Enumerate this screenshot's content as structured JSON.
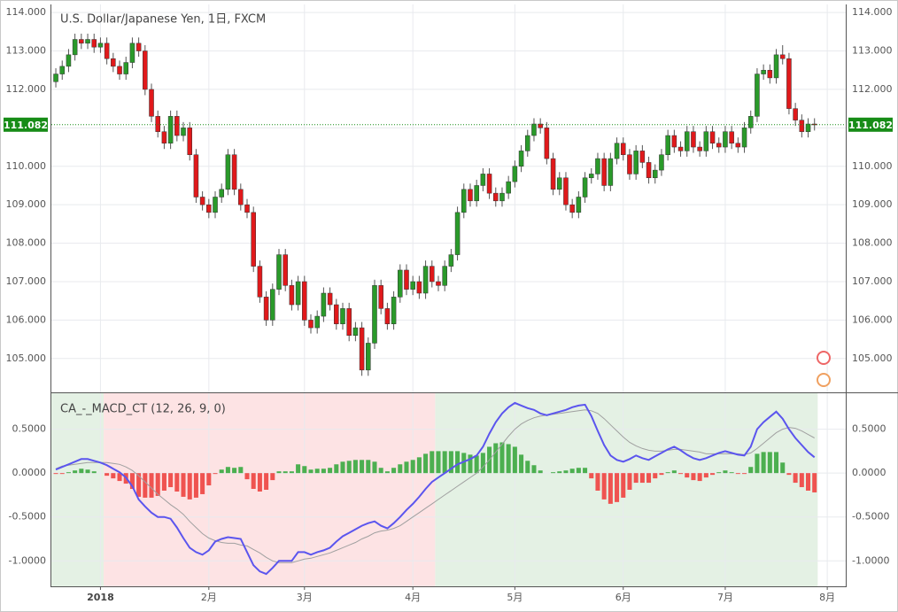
{
  "chart_data": [
    {
      "type": "candlestick",
      "title": "U.S. Dollar/Japanese Yen, 1日, FXCM",
      "up_color": "#2a9a2a",
      "down_color": "#e0191b",
      "wick_color": "#555555",
      "last_price_color": "#178c17",
      "xlim": [
        -0.7,
        123.9
      ],
      "ylim": [
        104.12,
        114.21
      ],
      "grid": true,
      "yticks": [
        {
          "value": 105,
          "label": "105.000"
        },
        {
          "value": 106,
          "label": "106.000"
        },
        {
          "value": 107,
          "label": "107.000"
        },
        {
          "value": 108,
          "label": "108.000"
        },
        {
          "value": 109,
          "label": "109.000"
        },
        {
          "value": 110,
          "label": "110.000"
        },
        {
          "value": 111,
          "label": "111.000"
        },
        {
          "value": 112,
          "label": "112.000"
        },
        {
          "value": 113,
          "label": "113.000"
        },
        {
          "value": 114,
          "label": "114.000"
        }
      ],
      "candles": [
        [
          112.2,
          112.55,
          112.05,
          112.4
        ],
        [
          112.4,
          112.75,
          112.25,
          112.6
        ],
        [
          112.6,
          113.05,
          112.45,
          112.9
        ],
        [
          112.9,
          113.45,
          112.75,
          113.3
        ],
        [
          113.3,
          113.45,
          113.05,
          113.2
        ],
        [
          113.2,
          113.45,
          113.05,
          113.3
        ],
        [
          113.3,
          113.45,
          112.95,
          113.1
        ],
        [
          113.1,
          113.35,
          112.95,
          113.2
        ],
        [
          113.2,
          113.35,
          112.65,
          112.8
        ],
        [
          112.8,
          112.95,
          112.45,
          112.6
        ],
        [
          112.6,
          112.75,
          112.25,
          112.4
        ],
        [
          112.4,
          112.85,
          112.25,
          112.7
        ],
        [
          112.7,
          113.35,
          112.55,
          113.2
        ],
        [
          113.2,
          113.35,
          112.85,
          113.0
        ],
        [
          113.0,
          113.15,
          111.85,
          112.0
        ],
        [
          112.0,
          112.15,
          111.15,
          111.3
        ],
        [
          111.3,
          111.45,
          110.75,
          110.9
        ],
        [
          110.9,
          111.05,
          110.45,
          110.6
        ],
        [
          110.6,
          111.45,
          110.45,
          111.3
        ],
        [
          111.3,
          111.45,
          110.65,
          110.8
        ],
        [
          110.8,
          111.15,
          110.65,
          111.0
        ],
        [
          111.0,
          111.15,
          110.15,
          110.3
        ],
        [
          110.3,
          110.45,
          109.05,
          109.2
        ],
        [
          109.2,
          109.35,
          108.85,
          109.0
        ],
        [
          109.0,
          109.15,
          108.65,
          108.8
        ],
        [
          108.8,
          109.35,
          108.65,
          109.2
        ],
        [
          109.2,
          109.55,
          109.05,
          109.4
        ],
        [
          109.4,
          110.45,
          109.25,
          110.3
        ],
        [
          110.3,
          110.45,
          109.25,
          109.4
        ],
        [
          109.4,
          109.55,
          108.85,
          109.0
        ],
        [
          109.0,
          109.15,
          108.65,
          108.8
        ],
        [
          108.8,
          108.95,
          107.25,
          107.4
        ],
        [
          107.4,
          107.55,
          106.45,
          106.6
        ],
        [
          106.6,
          106.75,
          105.85,
          106.0
        ],
        [
          106.0,
          106.95,
          105.85,
          106.8
        ],
        [
          106.8,
          107.85,
          106.65,
          107.7
        ],
        [
          107.7,
          107.85,
          106.75,
          106.9
        ],
        [
          106.9,
          107.05,
          106.25,
          106.4
        ],
        [
          106.4,
          107.15,
          106.25,
          107.0
        ],
        [
          107.0,
          107.15,
          105.85,
          106.0
        ],
        [
          106.0,
          106.15,
          105.65,
          105.8
        ],
        [
          105.8,
          106.25,
          105.65,
          106.1
        ],
        [
          106.1,
          106.85,
          105.95,
          106.7
        ],
        [
          106.7,
          106.85,
          106.25,
          106.4
        ],
        [
          106.4,
          106.55,
          105.75,
          105.9
        ],
        [
          105.9,
          106.45,
          105.75,
          106.3
        ],
        [
          106.3,
          106.45,
          105.45,
          105.6
        ],
        [
          105.6,
          105.95,
          105.45,
          105.8
        ],
        [
          105.8,
          105.95,
          104.55,
          104.7
        ],
        [
          104.7,
          105.55,
          104.55,
          105.4
        ],
        [
          105.4,
          107.05,
          105.25,
          106.9
        ],
        [
          106.9,
          107.05,
          106.15,
          106.3
        ],
        [
          106.3,
          106.45,
          105.75,
          105.9
        ],
        [
          105.9,
          106.75,
          105.75,
          106.6
        ],
        [
          106.6,
          107.45,
          106.45,
          107.3
        ],
        [
          107.3,
          107.45,
          106.65,
          106.8
        ],
        [
          106.8,
          107.15,
          106.65,
          107.0
        ],
        [
          107.0,
          107.15,
          106.55,
          106.7
        ],
        [
          106.7,
          107.55,
          106.55,
          107.4
        ],
        [
          107.4,
          107.55,
          106.85,
          107.0
        ],
        [
          107.0,
          107.15,
          106.75,
          106.9
        ],
        [
          106.9,
          107.55,
          106.75,
          107.4
        ],
        [
          107.4,
          107.85,
          107.25,
          107.7
        ],
        [
          107.7,
          108.95,
          107.55,
          108.8
        ],
        [
          108.8,
          109.55,
          108.65,
          109.4
        ],
        [
          109.4,
          109.55,
          108.95,
          109.1
        ],
        [
          109.1,
          109.65,
          108.95,
          109.5
        ],
        [
          109.5,
          109.95,
          109.35,
          109.8
        ],
        [
          109.8,
          109.95,
          109.15,
          109.3
        ],
        [
          109.3,
          109.45,
          108.95,
          109.1
        ],
        [
          109.1,
          109.45,
          108.95,
          109.3
        ],
        [
          109.3,
          109.75,
          109.15,
          109.6
        ],
        [
          109.6,
          110.15,
          109.45,
          110.0
        ],
        [
          110.0,
          110.55,
          109.85,
          110.4
        ],
        [
          110.4,
          110.95,
          110.25,
          110.8
        ],
        [
          110.8,
          111.25,
          110.65,
          111.1
        ],
        [
          111.1,
          111.25,
          110.85,
          111.0
        ],
        [
          111.0,
          111.15,
          110.05,
          110.2
        ],
        [
          110.2,
          110.35,
          109.25,
          109.4
        ],
        [
          109.4,
          109.85,
          109.25,
          109.7
        ],
        [
          109.7,
          109.85,
          108.85,
          109.0
        ],
        [
          109.0,
          109.15,
          108.65,
          108.8
        ],
        [
          108.8,
          109.35,
          108.65,
          109.2
        ],
        [
          109.2,
          109.85,
          109.05,
          109.7
        ],
        [
          109.7,
          109.95,
          109.55,
          109.8
        ],
        [
          109.8,
          110.35,
          109.65,
          110.2
        ],
        [
          110.2,
          110.35,
          109.35,
          109.5
        ],
        [
          109.5,
          110.35,
          109.35,
          110.2
        ],
        [
          110.2,
          110.75,
          110.05,
          110.6
        ],
        [
          110.6,
          110.75,
          110.15,
          110.3
        ],
        [
          110.3,
          110.45,
          109.65,
          109.8
        ],
        [
          109.8,
          110.55,
          109.65,
          110.4
        ],
        [
          110.4,
          110.55,
          109.95,
          110.1
        ],
        [
          110.1,
          110.25,
          109.55,
          109.7
        ],
        [
          109.7,
          110.05,
          109.55,
          109.9
        ],
        [
          109.9,
          110.45,
          109.75,
          110.3
        ],
        [
          110.3,
          110.95,
          110.15,
          110.8
        ],
        [
          110.8,
          110.95,
          110.35,
          110.5
        ],
        [
          110.5,
          110.65,
          110.25,
          110.4
        ],
        [
          110.4,
          111.05,
          110.25,
          110.9
        ],
        [
          110.9,
          111.05,
          110.35,
          110.5
        ],
        [
          110.5,
          110.65,
          110.25,
          110.4
        ],
        [
          110.4,
          111.05,
          110.25,
          110.9
        ],
        [
          110.9,
          111.05,
          110.45,
          110.6
        ],
        [
          110.6,
          110.75,
          110.35,
          110.5
        ],
        [
          110.5,
          111.05,
          110.35,
          110.9
        ],
        [
          110.9,
          111.05,
          110.45,
          110.6
        ],
        [
          110.6,
          110.75,
          110.35,
          110.5
        ],
        [
          110.5,
          111.15,
          110.35,
          111.0
        ],
        [
          111.0,
          111.45,
          110.85,
          111.3
        ],
        [
          111.3,
          112.55,
          111.15,
          112.4
        ],
        [
          112.4,
          112.65,
          112.25,
          112.5
        ],
        [
          112.5,
          112.65,
          112.15,
          112.3
        ],
        [
          112.3,
          113.05,
          112.15,
          112.9
        ],
        [
          112.9,
          113.15,
          112.65,
          112.8
        ],
        [
          112.8,
          112.95,
          111.35,
          111.5
        ],
        [
          111.5,
          111.65,
          111.05,
          111.2
        ],
        [
          111.2,
          111.35,
          110.75,
          110.9
        ],
        [
          110.9,
          111.25,
          110.75,
          111.1
        ],
        [
          111.1,
          111.25,
          110.93,
          111.082
        ]
      ]
    },
    {
      "type": "macd",
      "title": "CA_-_MACD_CT (12, 26, 9, 0)",
      "xlim": [
        -0.7,
        123.9
      ],
      "ylim": [
        -1.29,
        0.92
      ],
      "grid": true,
      "yticks": [
        {
          "value": -1,
          "label": "-1.0000"
        },
        {
          "value": -0.5,
          "label": "-0.5000"
        },
        {
          "value": 0,
          "label": "0.0000"
        },
        {
          "value": 0.5,
          "label": "0.5000"
        }
      ],
      "xticks": [
        {
          "value": 7,
          "label": "2018"
        },
        {
          "value": 24,
          "label": "2月"
        },
        {
          "value": 39,
          "label": "3月"
        },
        {
          "value": 56,
          "label": "4月"
        },
        {
          "value": 72,
          "label": "5月"
        },
        {
          "value": 89,
          "label": "6月"
        },
        {
          "value": 105,
          "label": "7月"
        },
        {
          "value": 121,
          "label": "8月"
        }
      ],
      "regions": [
        {
          "from": 0,
          "to": 7,
          "color": "#e4f1e4"
        },
        {
          "from": 8,
          "to": 59,
          "color": "#fde3e4"
        },
        {
          "from": 60,
          "to": 119,
          "color": "#e4f1e4"
        }
      ],
      "macd": {
        "color": "#5b55ee",
        "values": [
          0.04,
          0.07,
          0.1,
          0.13,
          0.16,
          0.16,
          0.14,
          0.12,
          0.09,
          0.05,
          0.01,
          -0.05,
          -0.15,
          -0.3,
          -0.38,
          -0.45,
          -0.5,
          -0.5,
          -0.52,
          -0.62,
          -0.74,
          -0.85,
          -0.9,
          -0.93,
          -0.88,
          -0.78,
          -0.75,
          -0.73,
          -0.74,
          -0.75,
          -0.9,
          -1.05,
          -1.12,
          -1.15,
          -1.08,
          -1.0,
          -1.0,
          -1.0,
          -0.9,
          -0.9,
          -0.93,
          -0.9,
          -0.88,
          -0.85,
          -0.78,
          -0.72,
          -0.68,
          -0.64,
          -0.6,
          -0.57,
          -0.55,
          -0.6,
          -0.63,
          -0.57,
          -0.5,
          -0.42,
          -0.35,
          -0.27,
          -0.18,
          -0.1,
          -0.05,
          0.0,
          0.05,
          0.1,
          0.13,
          0.16,
          0.2,
          0.3,
          0.45,
          0.58,
          0.68,
          0.75,
          0.8,
          0.77,
          0.74,
          0.72,
          0.68,
          0.66,
          0.68,
          0.7,
          0.72,
          0.75,
          0.77,
          0.78,
          0.65,
          0.48,
          0.32,
          0.2,
          0.15,
          0.13,
          0.16,
          0.2,
          0.17,
          0.15,
          0.19,
          0.23,
          0.27,
          0.3,
          0.26,
          0.21,
          0.17,
          0.15,
          0.17,
          0.2,
          0.23,
          0.25,
          0.23,
          0.21,
          0.2,
          0.3,
          0.5,
          0.58,
          0.64,
          0.7,
          0.62,
          0.5,
          0.4,
          0.32,
          0.24,
          0.18
        ]
      },
      "signal": {
        "color": "#a0a0a0",
        "values": [
          0.05,
          0.08,
          0.09,
          0.1,
          0.11,
          0.12,
          0.12,
          0.12,
          0.12,
          0.11,
          0.1,
          0.07,
          0.03,
          -0.03,
          -0.1,
          -0.17,
          -0.24,
          -0.3,
          -0.36,
          -0.41,
          -0.47,
          -0.55,
          -0.62,
          -0.69,
          -0.74,
          -0.77,
          -0.79,
          -0.8,
          -0.8,
          -0.82,
          -0.83,
          -0.87,
          -0.91,
          -0.96,
          -1.0,
          -1.02,
          -1.02,
          -1.02,
          -1.0,
          -0.98,
          -0.97,
          -0.95,
          -0.93,
          -0.91,
          -0.88,
          -0.85,
          -0.82,
          -0.79,
          -0.75,
          -0.72,
          -0.68,
          -0.66,
          -0.65,
          -0.63,
          -0.6,
          -0.55,
          -0.5,
          -0.45,
          -0.4,
          -0.35,
          -0.3,
          -0.25,
          -0.2,
          -0.15,
          -0.1,
          -0.05,
          0.0,
          0.07,
          0.15,
          0.24,
          0.33,
          0.42,
          0.5,
          0.56,
          0.6,
          0.63,
          0.65,
          0.66,
          0.67,
          0.68,
          0.69,
          0.7,
          0.71,
          0.72,
          0.71,
          0.68,
          0.62,
          0.55,
          0.48,
          0.41,
          0.35,
          0.31,
          0.28,
          0.26,
          0.25,
          0.25,
          0.26,
          0.27,
          0.27,
          0.26,
          0.25,
          0.24,
          0.22,
          0.22,
          0.22,
          0.22,
          0.22,
          0.22,
          0.21,
          0.23,
          0.28,
          0.34,
          0.4,
          0.46,
          0.5,
          0.52,
          0.51,
          0.48,
          0.44,
          0.4
        ]
      },
      "histogram": {
        "up_color": "#4caf50",
        "down_color": "#ef5350",
        "values": [
          -0.01,
          -0.01,
          0.01,
          0.03,
          0.05,
          0.04,
          0.02,
          0.0,
          -0.03,
          -0.06,
          -0.09,
          -0.12,
          -0.18,
          -0.27,
          -0.28,
          -0.28,
          -0.26,
          -0.2,
          -0.16,
          -0.21,
          -0.27,
          -0.3,
          -0.28,
          -0.24,
          -0.14,
          -0.01,
          0.04,
          0.07,
          0.06,
          0.07,
          -0.07,
          -0.18,
          -0.21,
          -0.19,
          -0.08,
          0.02,
          0.02,
          0.02,
          0.1,
          0.08,
          0.04,
          0.05,
          0.05,
          0.06,
          0.1,
          0.13,
          0.14,
          0.15,
          0.15,
          0.15,
          0.13,
          0.06,
          0.02,
          0.06,
          0.1,
          0.13,
          0.15,
          0.18,
          0.22,
          0.25,
          0.25,
          0.25,
          0.25,
          0.25,
          0.23,
          0.21,
          0.2,
          0.23,
          0.3,
          0.34,
          0.35,
          0.33,
          0.3,
          0.21,
          0.14,
          0.09,
          0.03,
          0.0,
          0.01,
          0.02,
          0.03,
          0.05,
          0.06,
          0.06,
          -0.06,
          -0.2,
          -0.3,
          -0.35,
          -0.33,
          -0.28,
          -0.19,
          -0.11,
          -0.11,
          -0.11,
          -0.06,
          -0.02,
          0.01,
          0.03,
          -0.01,
          -0.05,
          -0.08,
          -0.09,
          -0.05,
          -0.02,
          0.01,
          0.03,
          0.01,
          -0.01,
          -0.01,
          0.07,
          0.22,
          0.24,
          0.24,
          0.24,
          0.12,
          -0.02,
          -0.11,
          -0.16,
          -0.2,
          -0.22
        ]
      }
    }
  ]
}
